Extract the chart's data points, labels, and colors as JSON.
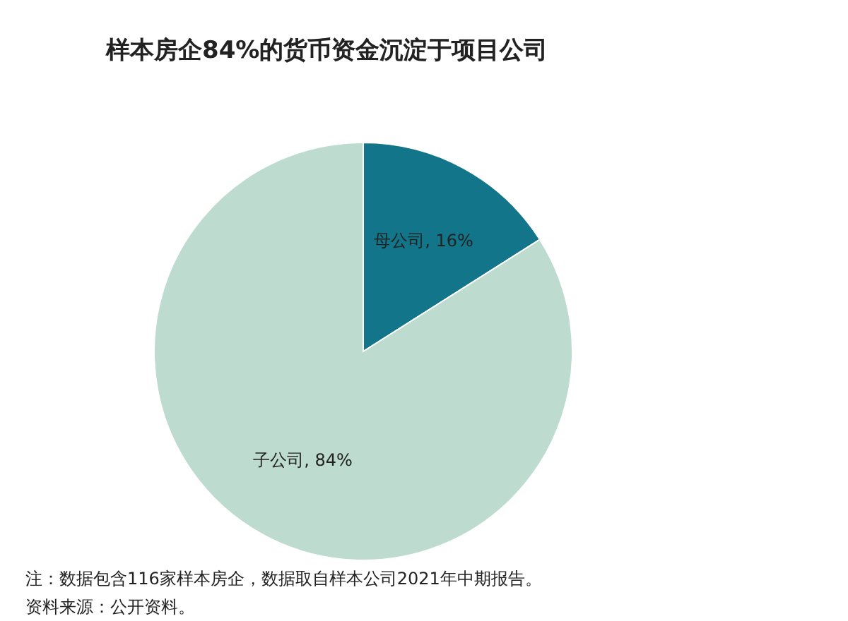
{
  "chart_data": {
    "type": "pie",
    "title": "样本房企84%的货币资金沉淀于项目公司",
    "categories": [
      "母公司",
      "子公司"
    ],
    "values": [
      16,
      84
    ],
    "colors": [
      "#12758a",
      "#bddccf"
    ],
    "value_labels": [
      "16%",
      "84%"
    ],
    "annotations": [
      "注：数据包含116家样本房企，数据取自样本公司2021年中期报告。",
      "资料来源：公开资料。"
    ]
  }
}
